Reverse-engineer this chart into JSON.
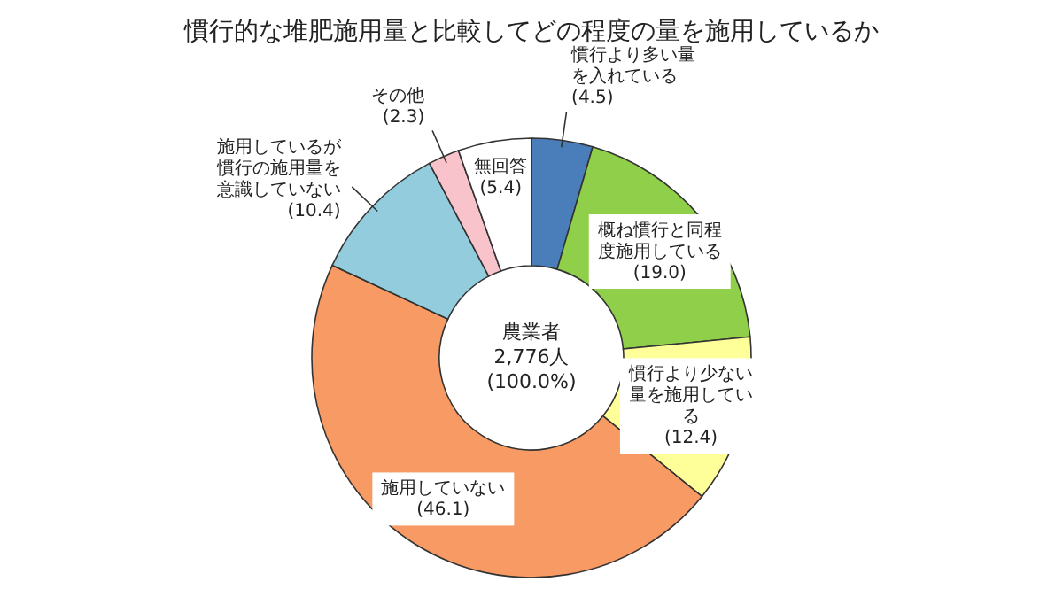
{
  "chart_data": {
    "type": "donut",
    "title": "慣行的な堆肥施用量と比較してどの程度の量を施用しているか",
    "categories": [
      "慣行より多い量を入れている",
      "概ね慣行と同程度施用している",
      "慣行より少ない量を施用している",
      "施用していない",
      "施用しているが慣行の施用量を意識していない",
      "その他",
      "無回答"
    ],
    "values": [
      4.5,
      19.0,
      12.4,
      46.1,
      10.4,
      2.3,
      5.4
    ],
    "value_labels": [
      "(4.5)",
      "(19.0)",
      "(12.4)",
      "(46.1)",
      "(10.4)",
      "(2.3)",
      "(5.4)"
    ],
    "colors": [
      "#4a7ebb",
      "#8fcf4a",
      "#ffff99",
      "#f79a63",
      "#93cddd",
      "#f9c3cb",
      "#ffffff"
    ],
    "annotations": [
      "農業者",
      "2,776人",
      "(100.0%)"
    ]
  }
}
